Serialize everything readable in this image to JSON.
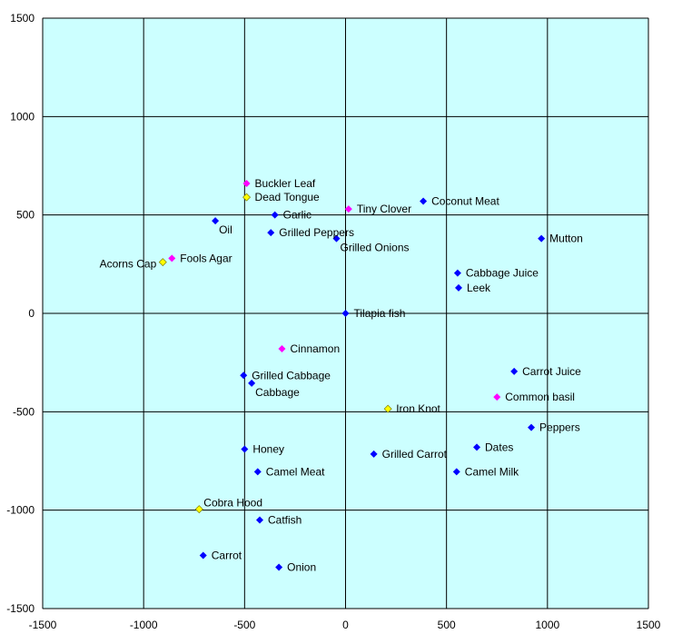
{
  "chart_data": {
    "type": "scatter",
    "title": "",
    "xlabel": "",
    "ylabel": "",
    "xlim": [
      -1500,
      1500
    ],
    "ylim": [
      -1500,
      1500
    ],
    "x_ticks": [
      -1500,
      -1000,
      -500,
      0,
      500,
      1000,
      1500
    ],
    "y_ticks": [
      -1500,
      -1000,
      -500,
      0,
      500,
      1000,
      1500
    ],
    "grid": true,
    "legend": "none",
    "colors": {
      "plot_background": "#ccffff",
      "grid": "#000000",
      "blue": "#0000ff",
      "magenta": "#ff00ff",
      "yellow": "#ffff00"
    },
    "points": [
      {
        "label": "Buckler Leaf",
        "x": -490,
        "y": 660,
        "color": "magenta",
        "label_side": "right"
      },
      {
        "label": "Dead Tongue",
        "x": -490,
        "y": 590,
        "color": "yellow",
        "label_side": "right"
      },
      {
        "label": "Tiny Clover",
        "x": 15,
        "y": 530,
        "color": "magenta",
        "label_side": "right"
      },
      {
        "label": "Coconut Meat",
        "x": 385,
        "y": 570,
        "color": "blue",
        "label_side": "right"
      },
      {
        "label": "Oil",
        "x": -645,
        "y": 470,
        "color": "blue",
        "label_side": "right-below"
      },
      {
        "label": "Garlic",
        "x": -350,
        "y": 500,
        "color": "blue",
        "label_side": "right"
      },
      {
        "label": "Grilled Peppers",
        "x": -370,
        "y": 410,
        "color": "blue",
        "label_side": "right"
      },
      {
        "label": "Grilled Onions",
        "x": -45,
        "y": 380,
        "color": "blue",
        "label_side": "right-below"
      },
      {
        "label": "Mutton",
        "x": 970,
        "y": 380,
        "color": "blue",
        "label_side": "right"
      },
      {
        "label": "Fools Agar",
        "x": -860,
        "y": 280,
        "color": "magenta",
        "label_side": "right"
      },
      {
        "label": "Acorns Cap",
        "x": -905,
        "y": 260,
        "color": "yellow",
        "label_side": "left"
      },
      {
        "label": "Cabbage Juice",
        "x": 555,
        "y": 205,
        "color": "blue",
        "label_side": "right"
      },
      {
        "label": "Leek",
        "x": 560,
        "y": 130,
        "color": "blue",
        "label_side": "right"
      },
      {
        "label": "Tilapia fish",
        "x": 0,
        "y": 0,
        "color": "blue",
        "label_side": "right"
      },
      {
        "label": "Cinnamon",
        "x": -315,
        "y": -180,
        "color": "magenta",
        "label_side": "right"
      },
      {
        "label": "Grilled Cabbage",
        "x": -505,
        "y": -315,
        "color": "blue",
        "label_side": "right"
      },
      {
        "label": "Cabbage",
        "x": -465,
        "y": -355,
        "color": "blue",
        "label_side": "right-below"
      },
      {
        "label": "Carrot Juice",
        "x": 835,
        "y": -295,
        "color": "blue",
        "label_side": "right"
      },
      {
        "label": "Common basil",
        "x": 750,
        "y": -425,
        "color": "magenta",
        "label_side": "right"
      },
      {
        "label": "Iron Knot",
        "x": 210,
        "y": -485,
        "color": "yellow",
        "label_side": "right"
      },
      {
        "label": "Peppers",
        "x": 920,
        "y": -580,
        "color": "blue",
        "label_side": "right"
      },
      {
        "label": "Dates",
        "x": 650,
        "y": -680,
        "color": "blue",
        "label_side": "right"
      },
      {
        "label": "Honey",
        "x": -500,
        "y": -690,
        "color": "blue",
        "label_side": "right"
      },
      {
        "label": "Grilled Carrot",
        "x": 140,
        "y": -715,
        "color": "blue",
        "label_side": "right"
      },
      {
        "label": "Camel Meat",
        "x": -435,
        "y": -805,
        "color": "blue",
        "label_side": "right"
      },
      {
        "label": "Camel Milk",
        "x": 550,
        "y": -805,
        "color": "blue",
        "label_side": "right"
      },
      {
        "label": "Cobra Hood",
        "x": -725,
        "y": -995,
        "color": "yellow",
        "label_side": "right-above"
      },
      {
        "label": "Catfish",
        "x": -425,
        "y": -1050,
        "color": "blue",
        "label_side": "right"
      },
      {
        "label": "Carrot",
        "x": -705,
        "y": -1230,
        "color": "blue",
        "label_side": "right"
      },
      {
        "label": "Onion",
        "x": -330,
        "y": -1290,
        "color": "blue",
        "label_side": "right"
      }
    ]
  }
}
